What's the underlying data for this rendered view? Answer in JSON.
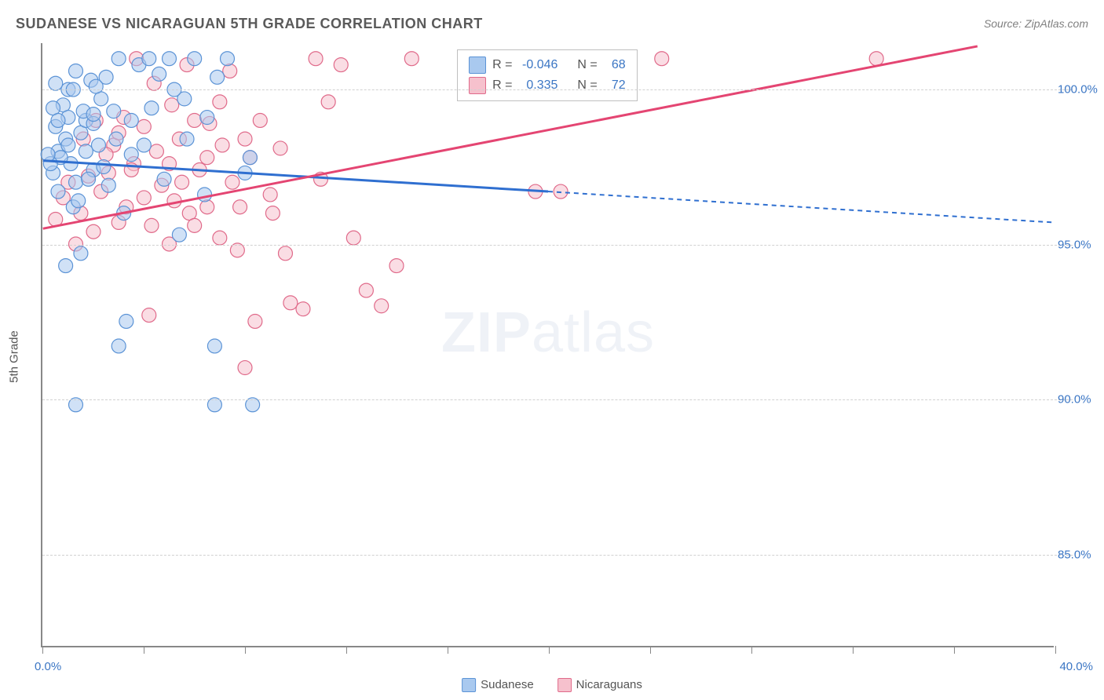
{
  "title": "SUDANESE VS NICARAGUAN 5TH GRADE CORRELATION CHART",
  "source": "Source: ZipAtlas.com",
  "watermark": {
    "bold": "ZIP",
    "light": "atlas"
  },
  "axes": {
    "y_title": "5th Grade",
    "xlim": [
      0,
      40
    ],
    "ylim": [
      82,
      101.5
    ],
    "x_tick_labels": {
      "start": "0.0%",
      "end": "40.0%"
    },
    "x_ticks": [
      0,
      4,
      8,
      12,
      16,
      20,
      24,
      28,
      32,
      36,
      40
    ],
    "y_gridlines": [
      {
        "y": 100,
        "label": "100.0%"
      },
      {
        "y": 95,
        "label": "95.0%"
      },
      {
        "y": 90,
        "label": "90.0%"
      },
      {
        "y": 85,
        "label": "85.0%"
      }
    ]
  },
  "colors": {
    "blue_fill": "#a9c9ef",
    "blue_stroke": "#5b93d6",
    "blue_line": "#2f6fd0",
    "pink_fill": "#f6c1cd",
    "pink_stroke": "#e06a8a",
    "pink_line": "#e44572",
    "grid": "#d0d0d0",
    "axis": "#888888",
    "text_blue": "#3b76c4",
    "text_gray": "#5a5a5a"
  },
  "stats_box": {
    "rows": [
      {
        "swatch": "blue",
        "r_label": "R =",
        "r_val": "-0.046",
        "n_label": "N =",
        "n_val": "68"
      },
      {
        "swatch": "pink",
        "r_label": "R =",
        "r_val": "0.335",
        "n_label": "N =",
        "n_val": "72"
      }
    ]
  },
  "bottom_legend": [
    {
      "swatch": "blue",
      "label": "Sudanese"
    },
    {
      "swatch": "pink",
      "label": "Nicaraguans"
    }
  ],
  "marker": {
    "radius": 9,
    "fill_opacity": 0.55,
    "stroke_width": 1.2
  },
  "series": {
    "sudanese": {
      "color_key": "blue",
      "points": [
        [
          0.4,
          97.3
        ],
        [
          0.6,
          98.0
        ],
        [
          0.8,
          99.5
        ],
        [
          1.0,
          100.0
        ],
        [
          1.2,
          96.2
        ],
        [
          1.3,
          97.0
        ],
        [
          1.5,
          98.6
        ],
        [
          1.7,
          99.0
        ],
        [
          1.9,
          100.3
        ],
        [
          2.0,
          97.4
        ],
        [
          2.2,
          98.2
        ],
        [
          2.5,
          100.4
        ],
        [
          2.8,
          99.3
        ],
        [
          3.0,
          101.0
        ],
        [
          3.2,
          96.0
        ],
        [
          3.5,
          97.9
        ],
        [
          3.8,
          100.8
        ],
        [
          4.0,
          98.2
        ],
        [
          4.3,
          99.4
        ],
        [
          4.6,
          100.5
        ],
        [
          5.0,
          101.0
        ],
        [
          5.4,
          95.3
        ],
        [
          5.6,
          99.7
        ],
        [
          6.0,
          101.0
        ],
        [
          6.4,
          96.6
        ],
        [
          0.9,
          94.3
        ],
        [
          1.5,
          94.7
        ],
        [
          1.1,
          97.6
        ],
        [
          2.0,
          98.9
        ],
        [
          2.3,
          99.7
        ],
        [
          2.6,
          96.9
        ],
        [
          2.9,
          98.4
        ],
        [
          3.0,
          91.7
        ],
        [
          3.3,
          92.5
        ],
        [
          6.8,
          91.7
        ],
        [
          6.8,
          89.8
        ],
        [
          8.3,
          89.8
        ],
        [
          1.3,
          89.8
        ],
        [
          8.0,
          97.3
        ],
        [
          8.2,
          97.8
        ],
        [
          3.5,
          99.0
        ],
        [
          4.2,
          101.0
        ],
        [
          4.8,
          97.1
        ],
        [
          5.2,
          100.0
        ],
        [
          5.7,
          98.4
        ],
        [
          6.5,
          99.1
        ],
        [
          6.9,
          100.4
        ],
        [
          7.3,
          101.0
        ],
        [
          1.0,
          99.1
        ],
        [
          1.2,
          100.0
        ],
        [
          0.6,
          96.7
        ],
        [
          0.7,
          97.8
        ],
        [
          0.9,
          98.4
        ],
        [
          1.4,
          96.4
        ],
        [
          1.6,
          99.3
        ],
        [
          1.8,
          97.1
        ],
        [
          2.1,
          100.1
        ],
        [
          2.4,
          97.5
        ],
        [
          0.5,
          98.8
        ],
        [
          0.4,
          99.4
        ],
        [
          0.5,
          100.2
        ],
        [
          0.3,
          97.6
        ],
        [
          0.6,
          99.0
        ],
        [
          0.2,
          97.9
        ],
        [
          1.0,
          98.2
        ],
        [
          1.3,
          100.6
        ],
        [
          1.7,
          98.0
        ],
        [
          2.0,
          99.2
        ]
      ],
      "trend": {
        "solid": {
          "x1": 0,
          "y1": 97.7,
          "x2": 20,
          "y2": 96.7
        },
        "dashed": {
          "x1": 20,
          "y1": 96.7,
          "x2": 40,
          "y2": 95.7
        },
        "width": 3
      }
    },
    "nicaraguans": {
      "color_key": "pink",
      "points": [
        [
          0.5,
          95.8
        ],
        [
          0.8,
          96.5
        ],
        [
          1.0,
          97.0
        ],
        [
          1.3,
          95.0
        ],
        [
          1.5,
          96.0
        ],
        [
          1.8,
          97.2
        ],
        [
          2.0,
          95.4
        ],
        [
          2.3,
          96.7
        ],
        [
          2.6,
          97.3
        ],
        [
          3.0,
          95.7
        ],
        [
          3.3,
          96.2
        ],
        [
          3.6,
          97.6
        ],
        [
          4.0,
          98.8
        ],
        [
          4.3,
          95.6
        ],
        [
          4.7,
          96.9
        ],
        [
          5.0,
          97.6
        ],
        [
          5.4,
          98.4
        ],
        [
          5.8,
          96.0
        ],
        [
          6.2,
          97.4
        ],
        [
          6.6,
          98.9
        ],
        [
          7.0,
          99.6
        ],
        [
          7.4,
          100.6
        ],
        [
          7.8,
          96.2
        ],
        [
          8.2,
          97.8
        ],
        [
          8.6,
          99.0
        ],
        [
          9.0,
          96.6
        ],
        [
          9.4,
          98.1
        ],
        [
          9.8,
          93.1
        ],
        [
          10.3,
          92.9
        ],
        [
          10.8,
          101.0
        ],
        [
          11.3,
          99.6
        ],
        [
          11.8,
          100.8
        ],
        [
          12.3,
          95.2
        ],
        [
          12.8,
          93.5
        ],
        [
          13.4,
          93.0
        ],
        [
          14.0,
          94.3
        ],
        [
          14.6,
          101.0
        ],
        [
          8.4,
          92.5
        ],
        [
          8.0,
          91.0
        ],
        [
          6.0,
          95.6
        ],
        [
          19.5,
          96.7
        ],
        [
          20.5,
          96.7
        ],
        [
          24.5,
          101.0
        ],
        [
          33.0,
          101.0
        ],
        [
          4.2,
          92.7
        ],
        [
          5.2,
          96.4
        ],
        [
          6.5,
          97.8
        ],
        [
          7.0,
          95.2
        ],
        [
          7.5,
          97.0
        ],
        [
          8.0,
          98.4
        ],
        [
          9.1,
          96.0
        ],
        [
          9.6,
          94.7
        ],
        [
          2.8,
          98.2
        ],
        [
          3.2,
          99.1
        ],
        [
          3.7,
          101.0
        ],
        [
          4.4,
          100.2
        ],
        [
          5.1,
          99.5
        ],
        [
          5.7,
          100.8
        ],
        [
          1.6,
          98.4
        ],
        [
          2.1,
          99.0
        ],
        [
          2.5,
          97.9
        ],
        [
          3.0,
          98.6
        ],
        [
          3.5,
          97.4
        ],
        [
          4.0,
          96.5
        ],
        [
          4.5,
          98.0
        ],
        [
          5.0,
          95.0
        ],
        [
          5.5,
          97.0
        ],
        [
          6.0,
          99.0
        ],
        [
          6.5,
          96.2
        ],
        [
          7.1,
          98.2
        ],
        [
          7.7,
          94.8
        ],
        [
          11.0,
          97.1
        ]
      ],
      "trend": {
        "solid": {
          "x1": 0,
          "y1": 95.5,
          "x2": 37,
          "y2": 101.4
        },
        "dashed": null,
        "width": 3
      }
    }
  }
}
